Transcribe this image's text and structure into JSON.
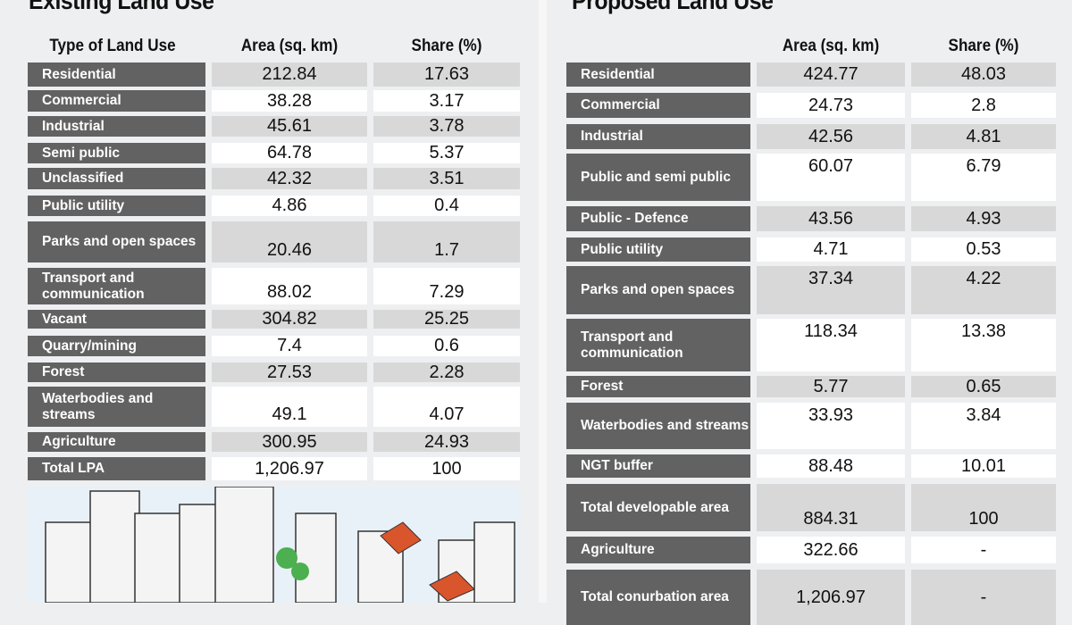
{
  "existing": {
    "title": "Existing Land Use",
    "headers": [
      "Type of Land Use",
      "Area (sq. km)",
      "Share (%)"
    ],
    "rows": [
      {
        "label": "Residential",
        "area": "212.84",
        "share": "17.63"
      },
      {
        "label": "Commercial",
        "area": "38.28",
        "share": "3.17"
      },
      {
        "label": "Industrial",
        "area": "45.61",
        "share": "3.78"
      },
      {
        "label": "Semi public",
        "area": "64.78",
        "share": "5.37"
      },
      {
        "label": "Unclassified",
        "area": "42.32",
        "share": "3.51"
      },
      {
        "label": "Public utility",
        "area": "4.86",
        "share": "0.4"
      },
      {
        "label": "Parks and open spaces",
        "area": "20.46",
        "share": "1.7"
      },
      {
        "label": "Transport and communication",
        "area": "88.02",
        "share": "7.29"
      },
      {
        "label": "Vacant",
        "area": "304.82",
        "share": "25.25"
      },
      {
        "label": "Quarry/mining",
        "area": "7.4",
        "share": "0.6"
      },
      {
        "label": "Forest",
        "area": "27.53",
        "share": "2.28"
      },
      {
        "label": "Waterbodies and streams",
        "area": "49.1",
        "share": "4.07"
      },
      {
        "label": "Agriculture",
        "area": "300.95",
        "share": "24.93"
      },
      {
        "label": "Total LPA",
        "area": "1,206.97",
        "share": "100"
      }
    ]
  },
  "proposed": {
    "title": "Proposed Land Use",
    "headers": [
      "",
      "Area (sq. km)",
      "Share (%)"
    ],
    "rows": [
      {
        "label": "Residential",
        "area": "424.77",
        "share": "48.03"
      },
      {
        "label": "Commercial",
        "area": "24.73",
        "share": "2.8"
      },
      {
        "label": "Industrial",
        "area": "42.56",
        "share": "4.81"
      },
      {
        "label": "Public and semi public",
        "area": "60.07",
        "share": "6.79"
      },
      {
        "label": "Public - Defence",
        "area": "43.56",
        "share": "4.93"
      },
      {
        "label": "Public utility",
        "area": "4.71",
        "share": "0.53"
      },
      {
        "label": "Parks and open spaces",
        "area": "37.34",
        "share": "4.22"
      },
      {
        "label": "Transport and communication",
        "area": "118.34",
        "share": "13.38"
      },
      {
        "label": "Forest",
        "area": "5.77",
        "share": "0.65"
      },
      {
        "label": "Waterbodies and streams",
        "area": "33.93",
        "share": "3.84"
      },
      {
        "label": "NGT buffer",
        "area": "88.48",
        "share": "10.01"
      },
      {
        "label": "Total developable area",
        "area": "884.31",
        "share": "100"
      },
      {
        "label": "Agriculture",
        "area": "322.66",
        "share": "-"
      },
      {
        "label": "Total conurbation area",
        "area": "1,206.97",
        "share": "-"
      }
    ]
  }
}
